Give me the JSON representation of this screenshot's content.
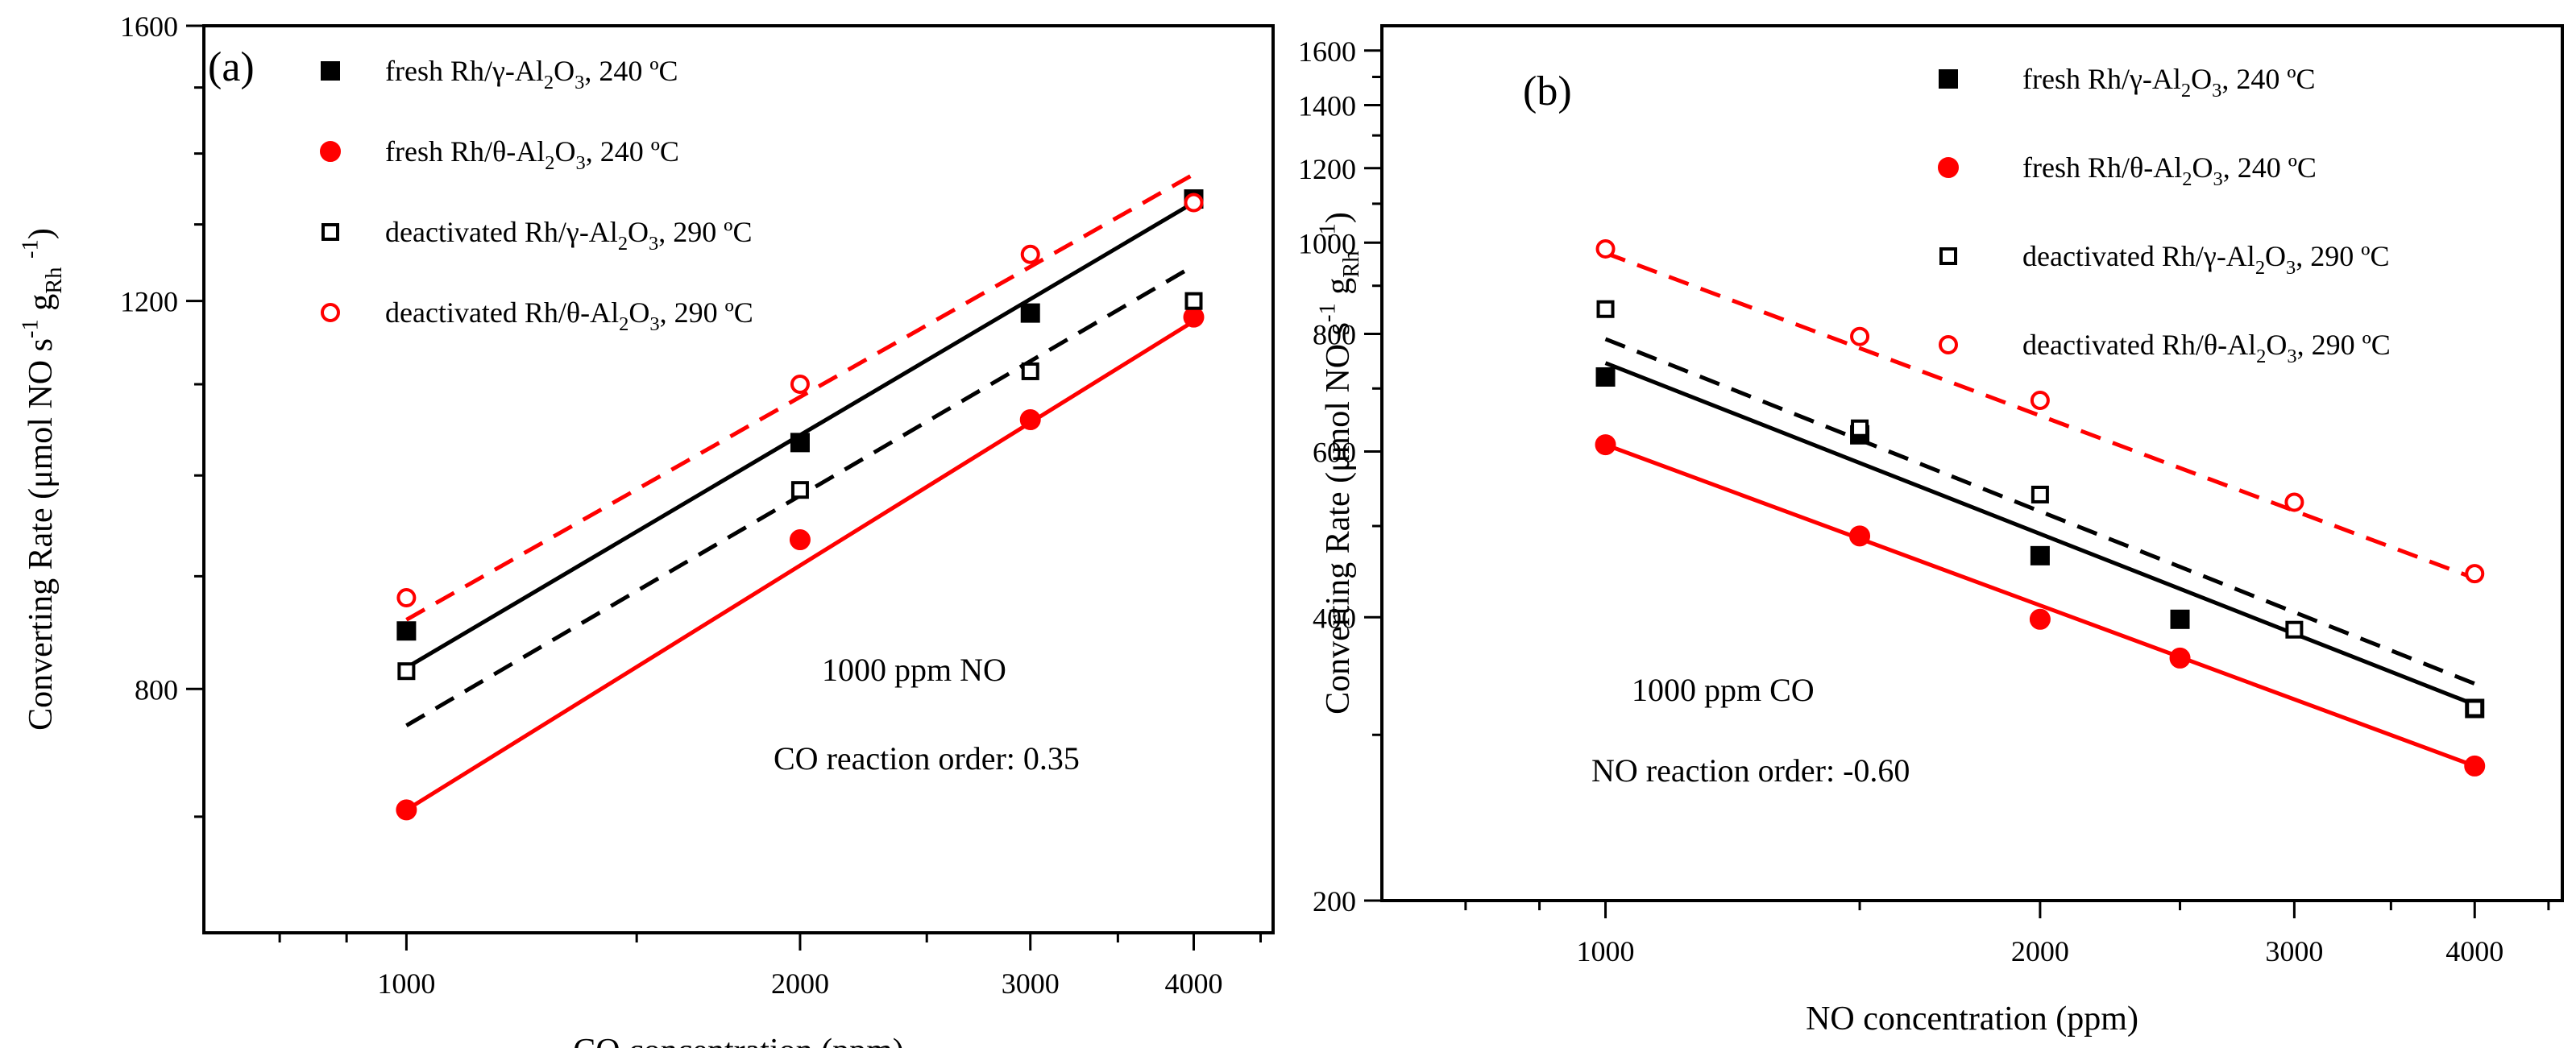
{
  "chart_data": [
    {
      "type": "scatter",
      "panel_label": "(a)",
      "xlabel": "CO concentration (ppm)",
      "ylabel": "Converting Rate (μmol NO s⁻¹ g_Rh⁻¹)",
      "ylabel_parts": [
        "Converting Rate (",
        "μmol NO s",
        "-1",
        " g",
        "Rh",
        " ",
        "-1",
        ")"
      ],
      "x_scale": "log",
      "y_scale": "log",
      "xlim": [
        700,
        4600
      ],
      "ylim": [
        620,
        1600
      ],
      "x_ticks": [
        1000,
        2000,
        3000,
        4000
      ],
      "x_tick_labels": [
        "1000",
        "2000",
        "3000",
        "4000"
      ],
      "y_ticks": [
        800,
        1200,
        1600
      ],
      "y_tick_labels": [
        "800",
        "1200",
        "1600"
      ],
      "annotations": [
        "1000 ppm NO",
        "CO reaction order: 0.35"
      ],
      "series": [
        {
          "name": "fresh Rh/γ-Al2O3, 240 ºC",
          "label_parts": [
            "fresh Rh/γ-Al",
            "2",
            "O",
            "3",
            ", 240 ºC"
          ],
          "marker": "square-filled",
          "color": "#000000",
          "line_style": "solid",
          "x": [
            1000,
            2000,
            3000,
            4000
          ],
          "y": [
            850,
            1035,
            1185,
            1335
          ],
          "fit": [
            [
              1000,
              818
            ],
            [
              4000,
              1330
            ]
          ]
        },
        {
          "name": "fresh Rh/θ-Al2O3, 240 ºC",
          "label_parts": [
            "fresh Rh/θ-Al",
            "2",
            "O",
            "3",
            ", 240 ºC"
          ],
          "marker": "circle-filled",
          "color": "#ff0000",
          "line_style": "solid",
          "x": [
            1000,
            2000,
            3000,
            4000
          ],
          "y": [
            705,
            935,
            1060,
            1180
          ],
          "fit": [
            [
              1000,
              705
            ],
            [
              4000,
              1175
            ]
          ]
        },
        {
          "name": "deactivated Rh/γ-Al2O3, 290 ºC",
          "label_parts": [
            "deactivated Rh/γ-Al",
            "2",
            "O",
            "3",
            ", 290 ºC"
          ],
          "marker": "square-open",
          "color": "#000000",
          "line_style": "dashed",
          "x": [
            1000,
            2000,
            3000,
            4000
          ],
          "y": [
            815,
            985,
            1115,
            1200
          ],
          "fit": [
            [
              1000,
              770
            ],
            [
              4000,
              1245
            ]
          ]
        },
        {
          "name": "deactivated Rh/θ-Al2O3, 290 ºC",
          "label_parts": [
            "deactivated Rh/θ-Al",
            "2",
            "O",
            "3",
            ", 290 ºC"
          ],
          "marker": "circle-open",
          "color": "#ff0000",
          "line_style": "dashed",
          "x": [
            1000,
            2000,
            3000,
            4000
          ],
          "y": [
            880,
            1100,
            1260,
            1330
          ],
          "fit": [
            [
              1000,
              860
            ],
            [
              4000,
              1370
            ]
          ]
        }
      ]
    },
    {
      "type": "scatter",
      "panel_label": "(b)",
      "xlabel": "NO concentration (ppm)",
      "ylabel": "Converting Rate (μmol NO s⁻¹ g_Rh⁻¹)",
      "ylabel_parts": [
        "Converting Rate (",
        "μmol NO s",
        "-1",
        " g",
        "Rh",
        " ",
        "-1",
        ")"
      ],
      "x_scale": "log",
      "y_scale": "log",
      "xlim": [
        700,
        4600
      ],
      "ylim": [
        200,
        1700
      ],
      "x_ticks": [
        1000,
        2000,
        3000,
        4000
      ],
      "x_tick_labels": [
        "1000",
        "2000",
        "3000",
        "4000"
      ],
      "y_ticks": [
        200,
        400,
        600,
        800,
        1000,
        1200,
        1400,
        1600
      ],
      "y_tick_labels": [
        "200",
        "400",
        "600",
        "800",
        "1000",
        "1200",
        "1400",
        "1600"
      ],
      "annotations": [
        "1000 ppm CO",
        "NO reaction order: -0.60"
      ],
      "series": [
        {
          "name": "fresh Rh/γ-Al2O3, 240 ºC",
          "label_parts": [
            "fresh Rh/γ-Al",
            "2",
            "O",
            "3",
            ", 240 ºC"
          ],
          "marker": "square-filled",
          "color": "#000000",
          "line_style": "solid",
          "x": [
            1000,
            1500,
            2000,
            2500,
            4000
          ],
          "y": [
            720,
            625,
            465,
            398,
            320
          ],
          "fit": [
            [
              1000,
              745
            ],
            [
              4000,
              323
            ]
          ]
        },
        {
          "name": "fresh Rh/θ-Al2O3, 240 ºC",
          "label_parts": [
            "fresh Rh/θ-Al",
            "2",
            "O",
            "3",
            ", 240 ºC"
          ],
          "marker": "circle-filled",
          "color": "#ff0000",
          "line_style": "solid",
          "x": [
            1000,
            1500,
            2000,
            2500,
            4000
          ],
          "y": [
            610,
            488,
            398,
            362,
            278
          ],
          "fit": [
            [
              1000,
              610
            ],
            [
              4000,
              278
            ]
          ]
        },
        {
          "name": "deactivated Rh/γ-Al2O3, 290 ºC",
          "label_parts": [
            "deactivated Rh/γ-Al",
            "2",
            "O",
            "3",
            ", 290 ºC"
          ],
          "marker": "square-open",
          "color": "#000000",
          "line_style": "dashed",
          "x": [
            1000,
            1500,
            2000,
            3000,
            4000
          ],
          "y": [
            850,
            635,
            540,
            388,
            320
          ],
          "fit": [
            [
              1000,
              790
            ],
            [
              4000,
              340
            ]
          ]
        },
        {
          "name": "deactivated Rh/θ-Al2O3, 290 ºC",
          "label_parts": [
            "deactivated Rh/θ-Al",
            "2",
            "O",
            "3",
            ", 290 ºC"
          ],
          "marker": "circle-open",
          "color": "#ff0000",
          "line_style": "dashed",
          "x": [
            1000,
            1500,
            2000,
            3000,
            4000
          ],
          "y": [
            985,
            795,
            680,
            530,
            445
          ],
          "fit": [
            [
              1000,
              975
            ],
            [
              4000,
              440
            ]
          ]
        }
      ]
    }
  ]
}
